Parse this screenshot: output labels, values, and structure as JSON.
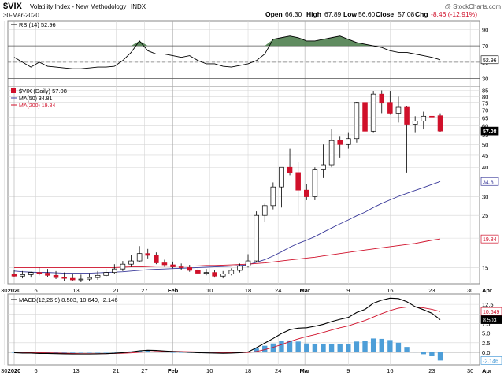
{
  "header": {
    "symbol": "$VIX",
    "name": "Volatility Index - New Methodology",
    "exchange": "INDX",
    "date": "30-Mar-2020",
    "open_label": "Open",
    "open": "66.30",
    "high_label": "High",
    "high": "67.89",
    "low_label": "Low",
    "low": "56.60",
    "close_label": "Close",
    "close": "57.08",
    "chg_label": "Chg",
    "chg": "-8.46 (-12.91%)",
    "watermark": "@ StockCharts.com"
  },
  "colors": {
    "up": "#ffffff",
    "down": "#d0102a",
    "candle_outline": "#000000",
    "ma50": "#3a3a9a",
    "ma200": "#d0102a",
    "rsi_fill": "#4f7f4f",
    "macd": "#000000",
    "signal": "#d0102a",
    "hist": "#4d9ed8",
    "grid": "#d6d6d6"
  },
  "chart_data": [
    {
      "type": "line",
      "title": "RSI(14) 52.96",
      "legend": [
        "RSI(14) 52.96"
      ],
      "y_ticks": [
        30,
        50,
        70,
        90
      ],
      "ylim": [
        20,
        100
      ],
      "overbought": 70,
      "oversold": 30,
      "last_value_tag": "52.96",
      "series": [
        {
          "name": "RSI(14)",
          "values": [
            56,
            50,
            44,
            50,
            45,
            44,
            43,
            42,
            42,
            43,
            44,
            44,
            45,
            52,
            62,
            76,
            64,
            60,
            60,
            58,
            56,
            58,
            52,
            48,
            48,
            45,
            44,
            46,
            48,
            52,
            60,
            78,
            80,
            82,
            80,
            76,
            76,
            78,
            80,
            82,
            78,
            74,
            72,
            70,
            68,
            64,
            62,
            62,
            60,
            58,
            56,
            53
          ]
        }
      ]
    },
    {
      "type": "candlestick",
      "legend": [
        "$VIX (Daily) 57.08",
        "MA(50) 34.81",
        "MA(200) 19.84"
      ],
      "y_ticks": [
        15,
        20,
        25,
        30,
        35,
        40,
        45,
        50,
        55,
        60,
        65,
        70,
        75,
        80,
        85
      ],
      "y_scale": "log",
      "ylim": [
        12.8,
        88
      ],
      "value_tags": [
        "57.08",
        "34.81",
        "19.84"
      ],
      "x_tick_labels": [
        "30",
        "2020",
        "6",
        "13",
        "21",
        "27",
        "Feb",
        "10",
        "18",
        "24",
        "Mar",
        "9",
        "16",
        "23",
        "30",
        "Apr",
        "6"
      ],
      "candles": [
        {
          "o": 14.0,
          "h": 14.6,
          "l": 13.7,
          "c": 13.8
        },
        {
          "o": 13.8,
          "h": 14.5,
          "l": 13.5,
          "c": 14.0
        },
        {
          "o": 14.0,
          "h": 14.4,
          "l": 13.6,
          "c": 14.3
        },
        {
          "o": 14.3,
          "h": 15.0,
          "l": 13.9,
          "c": 14.2
        },
        {
          "o": 14.2,
          "h": 14.8,
          "l": 13.7,
          "c": 13.9
        },
        {
          "o": 13.9,
          "h": 14.5,
          "l": 13.4,
          "c": 13.6
        },
        {
          "o": 13.6,
          "h": 14.3,
          "l": 13.2,
          "c": 13.5
        },
        {
          "o": 13.5,
          "h": 14.1,
          "l": 13.1,
          "c": 13.3
        },
        {
          "o": 13.3,
          "h": 14.0,
          "l": 13.0,
          "c": 13.4
        },
        {
          "o": 13.4,
          "h": 14.2,
          "l": 13.1,
          "c": 13.6
        },
        {
          "o": 13.6,
          "h": 14.5,
          "l": 13.3,
          "c": 13.9
        },
        {
          "o": 13.9,
          "h": 14.8,
          "l": 13.7,
          "c": 14.3
        },
        {
          "o": 14.3,
          "h": 15.5,
          "l": 14.1,
          "c": 14.8
        },
        {
          "o": 14.8,
          "h": 16.0,
          "l": 14.5,
          "c": 15.5
        },
        {
          "o": 15.5,
          "h": 17.0,
          "l": 15.1,
          "c": 16.0
        },
        {
          "o": 16.0,
          "h": 18.5,
          "l": 15.8,
          "c": 17.2
        },
        {
          "o": 17.2,
          "h": 18.0,
          "l": 16.4,
          "c": 16.9
        },
        {
          "o": 16.9,
          "h": 17.4,
          "l": 15.5,
          "c": 15.7
        },
        {
          "o": 15.7,
          "h": 16.2,
          "l": 15.1,
          "c": 15.4
        },
        {
          "o": 15.4,
          "h": 15.9,
          "l": 14.9,
          "c": 15.1
        },
        {
          "o": 15.1,
          "h": 15.6,
          "l": 14.7,
          "c": 15.0
        },
        {
          "o": 15.0,
          "h": 15.4,
          "l": 14.4,
          "c": 14.6
        },
        {
          "o": 14.6,
          "h": 15.0,
          "l": 14.1,
          "c": 14.2
        },
        {
          "o": 14.2,
          "h": 14.8,
          "l": 13.9,
          "c": 14.3
        },
        {
          "o": 14.3,
          "h": 14.7,
          "l": 13.6,
          "c": 13.8
        },
        {
          "o": 13.8,
          "h": 14.5,
          "l": 13.5,
          "c": 14.1
        },
        {
          "o": 14.1,
          "h": 14.9,
          "l": 13.9,
          "c": 14.6
        },
        {
          "o": 14.6,
          "h": 15.6,
          "l": 14.3,
          "c": 15.2
        },
        {
          "o": 15.2,
          "h": 17.1,
          "l": 15.0,
          "c": 16.0
        },
        {
          "o": 16.0,
          "h": 26.0,
          "l": 15.8,
          "c": 25.0
        },
        {
          "o": 25.0,
          "h": 28.0,
          "l": 23.5,
          "c": 27.5
        },
        {
          "o": 27.5,
          "h": 34.5,
          "l": 26.5,
          "c": 33.0
        },
        {
          "o": 33.0,
          "h": 40.0,
          "l": 27.0,
          "c": 40.0
        },
        {
          "o": 40.0,
          "h": 48.0,
          "l": 37.0,
          "c": 38.0
        },
        {
          "o": 38.0,
          "h": 42.0,
          "l": 25.0,
          "c": 32.0
        },
        {
          "o": 32.0,
          "h": 34.0,
          "l": 29.0,
          "c": 30.0
        },
        {
          "o": 30.0,
          "h": 40.0,
          "l": 29.0,
          "c": 39.0
        },
        {
          "o": 39.0,
          "h": 50.0,
          "l": 36.0,
          "c": 41.0
        },
        {
          "o": 41.0,
          "h": 58.0,
          "l": 40.0,
          "c": 52.0
        },
        {
          "o": 52.0,
          "h": 54.0,
          "l": 44.0,
          "c": 50.0
        },
        {
          "o": 50.0,
          "h": 56.0,
          "l": 48.0,
          "c": 53.0
        },
        {
          "o": 53.0,
          "h": 76.0,
          "l": 51.0,
          "c": 75.0
        },
        {
          "o": 75.0,
          "h": 84.0,
          "l": 55.0,
          "c": 57.0
        },
        {
          "o": 57.0,
          "h": 84.0,
          "l": 56.0,
          "c": 82.0
        },
        {
          "o": 82.0,
          "h": 85.0,
          "l": 68.0,
          "c": 75.0
        },
        {
          "o": 75.0,
          "h": 84.0,
          "l": 67.0,
          "c": 68.0
        },
        {
          "o": 68.0,
          "h": 80.0,
          "l": 62.0,
          "c": 72.0
        },
        {
          "o": 72.0,
          "h": 73.0,
          "l": 38.0,
          "c": 61.0
        },
        {
          "o": 61.0,
          "h": 66.0,
          "l": 56.0,
          "c": 63.0
        },
        {
          "o": 63.0,
          "h": 69.0,
          "l": 58.0,
          "c": 66.0
        },
        {
          "o": 66.0,
          "h": 68.0,
          "l": 58.0,
          "c": 65.0
        },
        {
          "o": 66.3,
          "h": 67.89,
          "l": 56.6,
          "c": 57.08
        }
      ],
      "series": [
        {
          "name": "MA(50)",
          "values": [
            14.5,
            14.4,
            14.35,
            14.3,
            14.3,
            14.25,
            14.2,
            14.2,
            14.2,
            14.2,
            14.25,
            14.3,
            14.35,
            14.4,
            14.5,
            14.6,
            14.7,
            14.75,
            14.8,
            14.85,
            14.9,
            14.95,
            15.0,
            15.05,
            15.1,
            15.15,
            15.2,
            15.3,
            15.4,
            15.8,
            16.2,
            16.8,
            17.5,
            18.3,
            19.0,
            19.6,
            20.3,
            21.2,
            22.1,
            23.0,
            23.9,
            24.9,
            25.8,
            27.0,
            28.1,
            29.1,
            30.1,
            31.0,
            31.9,
            32.8,
            33.8,
            34.81
          ]
        },
        {
          "name": "MA(200)",
          "values": [
            15.0,
            15.0,
            15.0,
            15.0,
            15.0,
            15.0,
            15.0,
            15.0,
            15.0,
            15.0,
            15.0,
            15.0,
            15.0,
            15.05,
            15.1,
            15.1,
            15.15,
            15.2,
            15.2,
            15.2,
            15.2,
            15.2,
            15.25,
            15.3,
            15.3,
            15.35,
            15.4,
            15.45,
            15.5,
            15.6,
            15.7,
            15.85,
            16.0,
            16.15,
            16.3,
            16.45,
            16.6,
            16.8,
            17.0,
            17.2,
            17.4,
            17.6,
            17.8,
            18.0,
            18.2,
            18.4,
            18.6,
            18.8,
            19.0,
            19.3,
            19.6,
            19.84
          ]
        }
      ]
    },
    {
      "type": "line",
      "legend": [
        "MACD(12,26,9) 8.503, 10.649, -2.146"
      ],
      "y_ticks": [
        0.0,
        2.5,
        5.0,
        7.5,
        10.0,
        12.5
      ],
      "ylim": [
        -3.3,
        15.2
      ],
      "value_tags": [
        "10.649",
        "8.503",
        "-2.146"
      ],
      "x_tick_labels": [
        "30",
        "2020",
        "6",
        "13",
        "21",
        "27",
        "Feb",
        "10",
        "18",
        "24",
        "Mar",
        "9",
        "16",
        "23",
        "30",
        "Apr",
        "6"
      ],
      "series": [
        {
          "name": "MACD",
          "values": [
            -0.1,
            -0.2,
            -0.2,
            -0.3,
            -0.3,
            -0.35,
            -0.4,
            -0.45,
            -0.45,
            -0.45,
            -0.4,
            -0.35,
            -0.25,
            -0.1,
            0.1,
            0.4,
            0.55,
            0.5,
            0.35,
            0.2,
            0.1,
            0.0,
            -0.1,
            -0.15,
            -0.2,
            -0.25,
            -0.2,
            -0.1,
            0.1,
            1.2,
            2.4,
            3.6,
            4.9,
            5.9,
            6.3,
            6.4,
            6.8,
            7.3,
            8.0,
            8.6,
            9.1,
            10.4,
            11.2,
            12.8,
            13.6,
            14.1,
            14.0,
            13.2,
            11.9,
            11.1,
            10.2,
            8.503
          ]
        },
        {
          "name": "Signal",
          "values": [
            0.0,
            0.0,
            -0.05,
            -0.1,
            -0.15,
            -0.2,
            -0.25,
            -0.3,
            -0.35,
            -0.35,
            -0.35,
            -0.35,
            -0.3,
            -0.25,
            -0.15,
            0.0,
            0.1,
            0.2,
            0.25,
            0.25,
            0.2,
            0.15,
            0.1,
            0.05,
            0.0,
            -0.05,
            -0.1,
            -0.1,
            -0.05,
            0.2,
            0.7,
            1.3,
            2.0,
            2.8,
            3.5,
            4.1,
            4.6,
            5.2,
            5.8,
            6.4,
            6.9,
            7.6,
            8.3,
            9.2,
            10.1,
            10.9,
            11.5,
            11.8,
            11.8,
            11.6,
            11.2,
            10.649
          ]
        },
        {
          "name": "Histogram",
          "values": [
            -0.1,
            -0.2,
            -0.15,
            -0.2,
            -0.15,
            -0.15,
            -0.15,
            -0.15,
            -0.1,
            -0.1,
            -0.05,
            0.0,
            0.05,
            0.15,
            0.25,
            0.4,
            0.45,
            0.3,
            0.1,
            -0.05,
            -0.1,
            -0.15,
            -0.2,
            -0.2,
            -0.2,
            -0.2,
            -0.1,
            0.0,
            0.15,
            1.0,
            1.7,
            2.3,
            2.9,
            3.1,
            2.8,
            2.3,
            2.2,
            2.1,
            2.2,
            2.2,
            2.2,
            2.8,
            2.9,
            3.6,
            3.5,
            3.2,
            2.5,
            1.4,
            0.1,
            -0.5,
            -1.0,
            -2.146
          ]
        }
      ]
    }
  ]
}
